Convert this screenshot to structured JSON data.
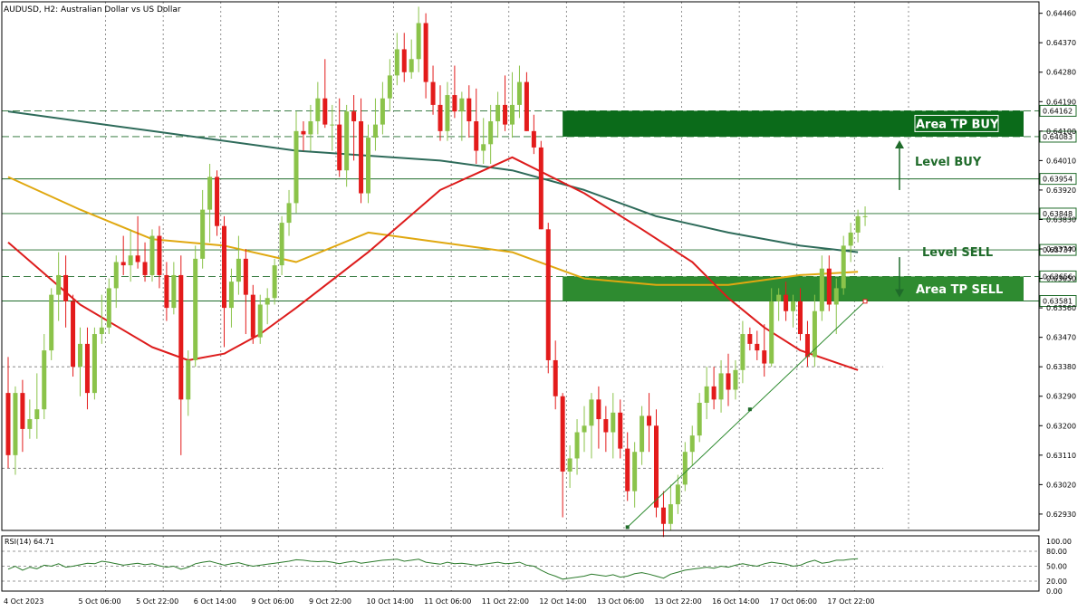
{
  "chart_data": {
    "type": "candlestick",
    "title": "AUDUSD, H2:  Australian Dollar vs US Dollar",
    "ylim": [
      0.6288,
      0.64495
    ],
    "price_ticks": [
      "0.64460",
      "0.64370",
      "0.64280",
      "0.64190",
      "0.64100",
      "0.64010",
      "0.63920",
      "0.63830",
      "0.63740",
      "0.63650",
      "0.63560",
      "0.63470",
      "0.63380",
      "0.63290",
      "0.63200",
      "0.63110",
      "0.63020",
      "0.62930"
    ],
    "time_labels": [
      {
        "label": "4 Oct 2023",
        "bar": 0
      },
      {
        "label": "5 Oct 06:00",
        "bar": 9
      },
      {
        "label": "5 Oct 22:00",
        "bar": 17
      },
      {
        "label": "6 Oct 14:00",
        "bar": 25
      },
      {
        "label": "9 Oct 06:00",
        "bar": 33
      },
      {
        "label": "9 Oct 22:00",
        "bar": 41
      },
      {
        "label": "10 Oct 14:00",
        "bar": 49
      },
      {
        "label": "11 Oct 06:00",
        "bar": 57
      },
      {
        "label": "11 Oct 22:00",
        "bar": 65
      },
      {
        "label": "12 Oct 14:00",
        "bar": 73
      },
      {
        "label": "13 Oct 06:00",
        "bar": 81
      },
      {
        "label": "13 Oct 22:00",
        "bar": 89
      },
      {
        "label": "16 Oct 14:00",
        "bar": 97
      },
      {
        "label": "17 Oct 06:00",
        "bar": 105
      },
      {
        "label": "17 Oct 22:00",
        "bar": 113
      }
    ],
    "candles": [
      [
        0.633,
        0.6341,
        0.6307,
        0.6311
      ],
      [
        0.6311,
        0.6332,
        0.6305,
        0.633
      ],
      [
        0.633,
        0.6334,
        0.6312,
        0.6319
      ],
      [
        0.6319,
        0.6328,
        0.6316,
        0.6322
      ],
      [
        0.6322,
        0.6336,
        0.6316,
        0.6325
      ],
      [
        0.6325,
        0.6348,
        0.6322,
        0.6343
      ],
      [
        0.6343,
        0.6362,
        0.634,
        0.636
      ],
      [
        0.636,
        0.6373,
        0.6352,
        0.6366
      ],
      [
        0.6366,
        0.6372,
        0.635,
        0.6358
      ],
      [
        0.6358,
        0.636,
        0.6335,
        0.6338
      ],
      [
        0.6338,
        0.635,
        0.6329,
        0.6345
      ],
      [
        0.6345,
        0.635,
        0.6325,
        0.633
      ],
      [
        0.633,
        0.635,
        0.6328,
        0.6348
      ],
      [
        0.6348,
        0.636,
        0.6345,
        0.635
      ],
      [
        0.635,
        0.6365,
        0.6348,
        0.6362
      ],
      [
        0.6362,
        0.6372,
        0.6356,
        0.637
      ],
      [
        0.637,
        0.6378,
        0.6366,
        0.6369
      ],
      [
        0.6369,
        0.638,
        0.6364,
        0.6372
      ],
      [
        0.6372,
        0.6384,
        0.6368,
        0.637
      ],
      [
        0.637,
        0.6376,
        0.6364,
        0.6366
      ],
      [
        0.6366,
        0.638,
        0.6364,
        0.6378
      ],
      [
        0.6378,
        0.6381,
        0.6362,
        0.6366
      ],
      [
        0.6366,
        0.637,
        0.6352,
        0.6356
      ],
      [
        0.6356,
        0.637,
        0.6354,
        0.6366
      ],
      [
        0.6366,
        0.6372,
        0.6311,
        0.6328
      ],
      [
        0.6328,
        0.6343,
        0.6323,
        0.634
      ],
      [
        0.634,
        0.6375,
        0.6338,
        0.6371
      ],
      [
        0.6371,
        0.6392,
        0.6368,
        0.6386
      ],
      [
        0.6386,
        0.64,
        0.6376,
        0.6396
      ],
      [
        0.6396,
        0.6398,
        0.6378,
        0.6381
      ],
      [
        0.6381,
        0.6384,
        0.6344,
        0.6356
      ],
      [
        0.6356,
        0.6368,
        0.635,
        0.6364
      ],
      [
        0.6364,
        0.6378,
        0.636,
        0.6371
      ],
      [
        0.6371,
        0.6374,
        0.6348,
        0.636
      ],
      [
        0.636,
        0.6363,
        0.6345,
        0.6347
      ],
      [
        0.6347,
        0.636,
        0.6345,
        0.6357
      ],
      [
        0.6357,
        0.6362,
        0.6351,
        0.6359
      ],
      [
        0.6359,
        0.6371,
        0.6357,
        0.6369
      ],
      [
        0.6369,
        0.6384,
        0.6366,
        0.6382
      ],
      [
        0.6382,
        0.6392,
        0.6378,
        0.6388
      ],
      [
        0.6388,
        0.6416,
        0.6385,
        0.641
      ],
      [
        0.641,
        0.6413,
        0.6404,
        0.6409
      ],
      [
        0.6409,
        0.6418,
        0.6404,
        0.6413
      ],
      [
        0.6413,
        0.6425,
        0.6409,
        0.642
      ],
      [
        0.642,
        0.6432,
        0.6411,
        0.6412
      ],
      [
        0.6412,
        0.6418,
        0.6404,
        0.6412
      ],
      [
        0.6412,
        0.642,
        0.6396,
        0.6398
      ],
      [
        0.6398,
        0.6418,
        0.6393,
        0.6416
      ],
      [
        0.6416,
        0.6421,
        0.6401,
        0.6413
      ],
      [
        0.6413,
        0.642,
        0.6388,
        0.6391
      ],
      [
        0.6391,
        0.6412,
        0.6388,
        0.6408
      ],
      [
        0.6408,
        0.642,
        0.6404,
        0.6412
      ],
      [
        0.6412,
        0.6425,
        0.6409,
        0.642
      ],
      [
        0.642,
        0.6432,
        0.6416,
        0.6427
      ],
      [
        0.6427,
        0.644,
        0.6424,
        0.6435
      ],
      [
        0.6435,
        0.644,
        0.6425,
        0.6428
      ],
      [
        0.6428,
        0.6438,
        0.6426,
        0.6432
      ],
      [
        0.6432,
        0.6448,
        0.6428,
        0.6443
      ],
      [
        0.6443,
        0.6446,
        0.642,
        0.6425
      ],
      [
        0.6425,
        0.643,
        0.6415,
        0.6418
      ],
      [
        0.6418,
        0.6424,
        0.6407,
        0.641
      ],
      [
        0.641,
        0.6425,
        0.6407,
        0.6421
      ],
      [
        0.6421,
        0.643,
        0.6414,
        0.6416
      ],
      [
        0.6416,
        0.6422,
        0.6407,
        0.642
      ],
      [
        0.642,
        0.6424,
        0.6408,
        0.6413
      ],
      [
        0.6413,
        0.6423,
        0.64,
        0.6404
      ],
      [
        0.6404,
        0.6414,
        0.64,
        0.6406
      ],
      [
        0.6406,
        0.6418,
        0.64,
        0.6413
      ],
      [
        0.6413,
        0.6422,
        0.6408,
        0.6418
      ],
      [
        0.6418,
        0.6427,
        0.641,
        0.6412
      ],
      [
        0.6412,
        0.6428,
        0.6408,
        0.6418
      ],
      [
        0.6418,
        0.643,
        0.6414,
        0.6425
      ],
      [
        0.6425,
        0.6428,
        0.641,
        0.641
      ],
      [
        0.641,
        0.6415,
        0.6403,
        0.6405
      ],
      [
        0.6405,
        0.6407,
        0.638,
        0.638
      ],
      [
        0.638,
        0.6382,
        0.6336,
        0.634
      ],
      [
        0.634,
        0.6346,
        0.6325,
        0.6329
      ],
      [
        0.6329,
        0.633,
        0.6292,
        0.6306
      ],
      [
        0.6306,
        0.6314,
        0.6301,
        0.631
      ],
      [
        0.631,
        0.6322,
        0.6305,
        0.6318
      ],
      [
        0.6318,
        0.6326,
        0.6312,
        0.632
      ],
      [
        0.632,
        0.633,
        0.631,
        0.6328
      ],
      [
        0.6328,
        0.6332,
        0.6313,
        0.6322
      ],
      [
        0.6322,
        0.6326,
        0.6312,
        0.6318
      ],
      [
        0.6318,
        0.633,
        0.631,
        0.6324
      ],
      [
        0.6324,
        0.6328,
        0.631,
        0.6313
      ],
      [
        0.6313,
        0.6318,
        0.6297,
        0.63
      ],
      [
        0.63,
        0.6315,
        0.6295,
        0.6312
      ],
      [
        0.6312,
        0.6326,
        0.6308,
        0.6323
      ],
      [
        0.6323,
        0.633,
        0.6312,
        0.632
      ],
      [
        0.632,
        0.6325,
        0.6292,
        0.6295
      ],
      [
        0.6295,
        0.63,
        0.6286,
        0.629
      ],
      [
        0.629,
        0.6302,
        0.6288,
        0.6296
      ],
      [
        0.6296,
        0.6305,
        0.6293,
        0.6302
      ],
      [
        0.6302,
        0.6315,
        0.63,
        0.6312
      ],
      [
        0.6312,
        0.632,
        0.6308,
        0.6317
      ],
      [
        0.6317,
        0.633,
        0.6315,
        0.6327
      ],
      [
        0.6327,
        0.6338,
        0.6322,
        0.6332
      ],
      [
        0.6332,
        0.6338,
        0.6325,
        0.6328
      ],
      [
        0.6328,
        0.634,
        0.6324,
        0.6336
      ],
      [
        0.6336,
        0.6342,
        0.6326,
        0.6331
      ],
      [
        0.6331,
        0.634,
        0.6328,
        0.6337
      ],
      [
        0.6337,
        0.6352,
        0.6333,
        0.6348
      ],
      [
        0.6348,
        0.635,
        0.6343,
        0.6345
      ],
      [
        0.6345,
        0.6349,
        0.634,
        0.6343
      ],
      [
        0.6343,
        0.6351,
        0.6335,
        0.6339
      ],
      [
        0.6339,
        0.6362,
        0.6338,
        0.6358
      ],
      [
        0.6358,
        0.6362,
        0.6352,
        0.636
      ],
      [
        0.636,
        0.6364,
        0.6352,
        0.6355
      ],
      [
        0.6355,
        0.636,
        0.635,
        0.6358
      ],
      [
        0.6358,
        0.6362,
        0.6346,
        0.6348
      ],
      [
        0.6348,
        0.6352,
        0.6338,
        0.6341
      ],
      [
        0.6341,
        0.636,
        0.6338,
        0.6355
      ],
      [
        0.6355,
        0.6372,
        0.6352,
        0.6368
      ],
      [
        0.6368,
        0.6372,
        0.6355,
        0.6357
      ],
      [
        0.6357,
        0.6365,
        0.6348,
        0.6362
      ],
      [
        0.6362,
        0.6378,
        0.636,
        0.6375
      ],
      [
        0.6375,
        0.6382,
        0.637,
        0.6379
      ],
      [
        0.6379,
        0.6386,
        0.6376,
        0.6384
      ],
      [
        0.6384,
        0.6387,
        0.6381,
        0.6384
      ]
    ],
    "moving_averages": [
      {
        "color": "#2e6b5a",
        "values": [
          [
            0,
            0.6416
          ],
          [
            20,
            0.641
          ],
          [
            40,
            0.6404
          ],
          [
            60,
            0.6401
          ],
          [
            70,
            0.6398
          ],
          [
            80,
            0.6392
          ],
          [
            90,
            0.6384
          ],
          [
            100,
            0.6379
          ],
          [
            110,
            0.6375
          ],
          [
            118,
            0.6373
          ]
        ]
      },
      {
        "color": "#e0a810",
        "values": [
          [
            0,
            0.6396
          ],
          [
            10,
            0.6386
          ],
          [
            20,
            0.6377
          ],
          [
            30,
            0.6375
          ],
          [
            40,
            0.637
          ],
          [
            50,
            0.6379
          ],
          [
            60,
            0.6376
          ],
          [
            70,
            0.6373
          ],
          [
            80,
            0.6365
          ],
          [
            90,
            0.6363
          ],
          [
            100,
            0.6363
          ],
          [
            110,
            0.6366
          ],
          [
            118,
            0.6367
          ]
        ]
      },
      {
        "color": "#dd1c1c",
        "values": [
          [
            0,
            0.6376
          ],
          [
            10,
            0.6357
          ],
          [
            20,
            0.6344
          ],
          [
            25,
            0.634
          ],
          [
            30,
            0.6342
          ],
          [
            35,
            0.6348
          ],
          [
            40,
            0.6356
          ],
          [
            50,
            0.6373
          ],
          [
            60,
            0.6392
          ],
          [
            70,
            0.6402
          ],
          [
            80,
            0.6391
          ],
          [
            88,
            0.638
          ],
          [
            95,
            0.637
          ],
          [
            100,
            0.6359
          ],
          [
            105,
            0.635
          ],
          [
            110,
            0.6343
          ],
          [
            118,
            0.6337
          ]
        ]
      }
    ],
    "horizontal_levels": [
      {
        "price": 0.64162,
        "label": "0.64162",
        "style": "dash"
      },
      {
        "price": 0.64083,
        "label": "0.64083",
        "style": "dash"
      },
      {
        "price": 0.63954,
        "label": "0.63954",
        "style": "solid"
      },
      {
        "price": 0.63848,
        "label": "0.63848",
        "style": "solid"
      },
      {
        "price": 0.63737,
        "label": "0.63737",
        "style": "solid"
      },
      {
        "price": 0.63656,
        "label": "0.63656",
        "style": "dash"
      },
      {
        "price": 0.63581,
        "label": "0.63581",
        "style": "solid"
      }
    ],
    "support_lines": [
      0.6338,
      0.6307
    ],
    "zones": [
      {
        "label": "Area TP BUY",
        "top": 0.64162,
        "bottom": 0.64083,
        "start_bar": 77,
        "color": "#0b6b1a"
      },
      {
        "label": "Area TP SELL",
        "top": 0.63656,
        "bottom": 0.63581,
        "start_bar": 77,
        "color": "#2e8b30"
      }
    ],
    "annotations": [
      "Level BUY",
      "Level SELL"
    ],
    "trendline": {
      "from": [
        86,
        0.6289
      ],
      "mid": [
        103,
        0.6325
      ],
      "to": [
        119,
        0.6358
      ]
    },
    "rsi": {
      "label": "RSI(14) 64.71",
      "ticks": [
        "100.00",
        "80.00",
        "50.00",
        "20.00",
        "0.00"
      ],
      "levels": [
        80,
        50,
        20
      ],
      "values": [
        44,
        50,
        42,
        48,
        45,
        52,
        50,
        55,
        48,
        50,
        53,
        56,
        55,
        60,
        58,
        55,
        52,
        54,
        56,
        53,
        55,
        51,
        48,
        50,
        44,
        48,
        55,
        58,
        60,
        56,
        52,
        55,
        57,
        53,
        50,
        52,
        54,
        56,
        58,
        60,
        63,
        62,
        60,
        59,
        60,
        58,
        55,
        58,
        60,
        56,
        58,
        60,
        62,
        63,
        64,
        60,
        62,
        64,
        58,
        56,
        54,
        58,
        55,
        56,
        54,
        52,
        54,
        56,
        58,
        55,
        56,
        58,
        52,
        50,
        42,
        35,
        30,
        24,
        26,
        28,
        30,
        34,
        32,
        30,
        33,
        28,
        30,
        35,
        37,
        34,
        30,
        26,
        34,
        38,
        42,
        44,
        46,
        48,
        46,
        50,
        48,
        52,
        55,
        52,
        50,
        55,
        58,
        56,
        54,
        50,
        52,
        58,
        62,
        56,
        58,
        62,
        62,
        64,
        65
      ]
    },
    "series": [
      {
        "values": [
          0.64162
        ]
      },
      {
        "values": [
          0.64083
        ]
      },
      {
        "values": [
          0.63954
        ]
      },
      {
        "values": [
          0.63848
        ]
      },
      {
        "values": [
          0.63737
        ]
      },
      {
        "values": [
          0.63656
        ]
      },
      {
        "values": [
          0.63581
        ]
      }
    ],
    "colors": {
      "bull": "#8bc34a",
      "bear": "#e31b1b",
      "grid": "#777777",
      "level": "#1f6b2a",
      "text": "#000000"
    }
  }
}
